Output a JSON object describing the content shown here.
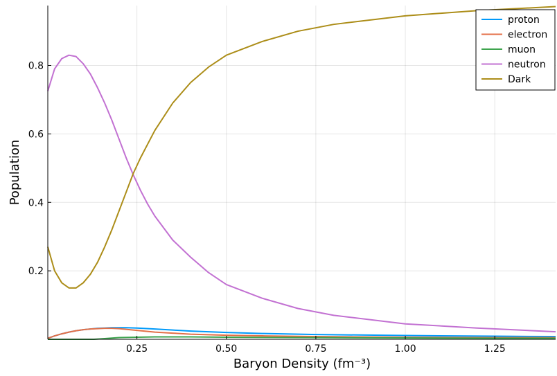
{
  "chart_data": {
    "type": "line",
    "title": "",
    "xlabel": "Baryon Density (fm⁻³)",
    "ylabel": "Population",
    "xlim": [
      0.001,
      1.42
    ],
    "ylim": [
      0.0,
      0.975
    ],
    "x_ticks": [
      {
        "value": 0.25,
        "label": "0.25"
      },
      {
        "value": 0.5,
        "label": "0.50"
      },
      {
        "value": 0.75,
        "label": "0.75"
      },
      {
        "value": 1.0,
        "label": "1.00"
      },
      {
        "value": 1.25,
        "label": "1.25"
      }
    ],
    "y_ticks": [
      {
        "value": 0.2,
        "label": "0.2"
      },
      {
        "value": 0.4,
        "label": "0.4"
      },
      {
        "value": 0.6,
        "label": "0.6"
      },
      {
        "value": 0.8,
        "label": "0.8"
      }
    ],
    "grid": true,
    "legend_position": "top-right",
    "series": [
      {
        "name": "proton",
        "color": "#009AFA",
        "x": [
          0.001,
          0.02,
          0.04,
          0.06,
          0.08,
          0.1,
          0.12,
          0.14,
          0.16,
          0.18,
          0.2,
          0.22,
          0.25,
          0.3,
          0.35,
          0.4,
          0.5,
          0.6,
          0.75,
          1.0,
          1.25,
          1.42
        ],
        "y": [
          0.003,
          0.01,
          0.016,
          0.021,
          0.025,
          0.028,
          0.03,
          0.032,
          0.033,
          0.034,
          0.034,
          0.034,
          0.033,
          0.03,
          0.027,
          0.024,
          0.02,
          0.017,
          0.014,
          0.011,
          0.009,
          0.008
        ]
      },
      {
        "name": "electron",
        "color": "#E36F47",
        "x": [
          0.001,
          0.02,
          0.04,
          0.06,
          0.08,
          0.1,
          0.12,
          0.14,
          0.16,
          0.18,
          0.2,
          0.22,
          0.25,
          0.3,
          0.35,
          0.4,
          0.5,
          0.6,
          0.75,
          1.0,
          1.25,
          1.42
        ],
        "y": [
          0.003,
          0.01,
          0.016,
          0.021,
          0.025,
          0.028,
          0.03,
          0.031,
          0.032,
          0.032,
          0.031,
          0.029,
          0.026,
          0.021,
          0.018,
          0.015,
          0.012,
          0.01,
          0.008,
          0.006,
          0.005,
          0.005
        ]
      },
      {
        "name": "muon",
        "color": "#3EA44E",
        "x": [
          0.001,
          0.05,
          0.1,
          0.13,
          0.16,
          0.2,
          0.25,
          0.3,
          0.4,
          0.5,
          0.75,
          1.0,
          1.25,
          1.42
        ],
        "y": [
          0.0,
          0.0,
          0.0,
          0.0,
          0.002,
          0.005,
          0.006,
          0.007,
          0.007,
          0.006,
          0.005,
          0.004,
          0.003,
          0.003
        ]
      },
      {
        "name": "neutron",
        "color": "#C271D2",
        "x": [
          0.001,
          0.02,
          0.04,
          0.06,
          0.08,
          0.1,
          0.12,
          0.14,
          0.16,
          0.18,
          0.2,
          0.22,
          0.24,
          0.26,
          0.28,
          0.3,
          0.35,
          0.4,
          0.45,
          0.5,
          0.6,
          0.7,
          0.8,
          1.0,
          1.2,
          1.42
        ],
        "y": [
          0.725,
          0.79,
          0.82,
          0.83,
          0.826,
          0.805,
          0.775,
          0.735,
          0.69,
          0.64,
          0.585,
          0.53,
          0.48,
          0.435,
          0.395,
          0.36,
          0.29,
          0.24,
          0.195,
          0.16,
          0.12,
          0.09,
          0.07,
          0.045,
          0.033,
          0.022
        ]
      },
      {
        "name": "Dark",
        "color": "#AC8D18",
        "x": [
          0.001,
          0.02,
          0.04,
          0.06,
          0.08,
          0.1,
          0.12,
          0.14,
          0.16,
          0.18,
          0.2,
          0.22,
          0.24,
          0.26,
          0.28,
          0.3,
          0.35,
          0.4,
          0.45,
          0.5,
          0.6,
          0.7,
          0.8,
          1.0,
          1.2,
          1.42
        ],
        "y": [
          0.27,
          0.2,
          0.165,
          0.15,
          0.15,
          0.165,
          0.19,
          0.225,
          0.27,
          0.32,
          0.375,
          0.43,
          0.485,
          0.53,
          0.57,
          0.61,
          0.69,
          0.75,
          0.795,
          0.83,
          0.87,
          0.9,
          0.92,
          0.945,
          0.96,
          0.972
        ]
      }
    ]
  }
}
